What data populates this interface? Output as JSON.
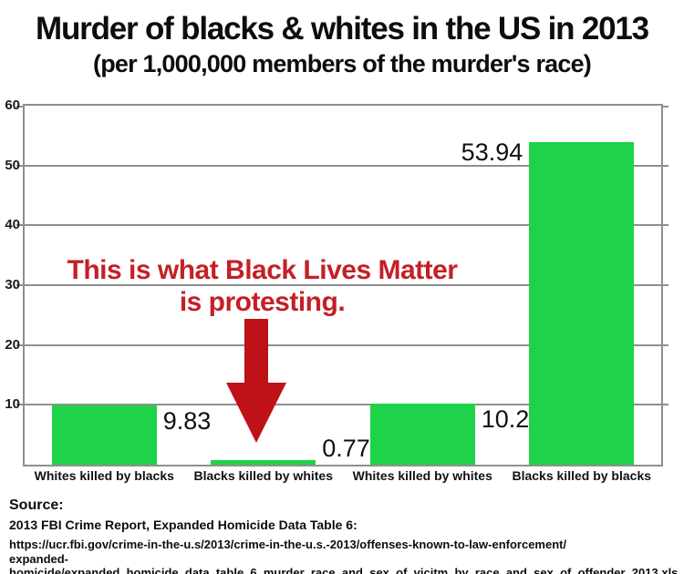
{
  "title": "Murder of blacks & whites in the US in 2013",
  "subtitle": "(per 1,000,000 members of the murder's race)",
  "annotation": {
    "line1": "This is what Black Lives Matter",
    "line2": "is protesting.",
    "text_color": "#C32026",
    "arrow_color": "#BE1218"
  },
  "source": {
    "label": "Source:",
    "citation": "2013 FBI Crime Report, Expanded Homicide Data Table 6:",
    "url_line1": "https://ucr.fbi.gov/crime-in-the-u.s/2013/crime-in-the-u.s.-2013/offenses-known-to-law-enforcement/",
    "url_line2": "expanded-homicide/expanded_homicide_data_table_6_murder_race_and_sex_of_vicitm_by_race_and_sex_of_offender_2013.xls"
  },
  "chart_data": {
    "type": "bar",
    "title": "Murder of blacks & whites in the US in 2013",
    "subtitle": "(per 1,000,000 members of the murder's race)",
    "categories": [
      "Whites killed by blacks",
      "Blacks killed by whites",
      "Whites killed by whites",
      "Blacks killed by blacks"
    ],
    "values": [
      9.83,
      0.77,
      10.22,
      53.94
    ],
    "data_labels": [
      "9.83",
      "0.77",
      "10.22",
      "53.94"
    ],
    "data_label_side": [
      "right",
      "right",
      "right",
      "left"
    ],
    "ylim": [
      0,
      60
    ],
    "yticks": [
      10,
      20,
      30,
      40,
      50,
      60
    ],
    "grid": true,
    "legend": "none",
    "bar_color": "#1ED249",
    "gridline_color": "#8f8f8f",
    "xlabel": "",
    "ylabel": ""
  }
}
